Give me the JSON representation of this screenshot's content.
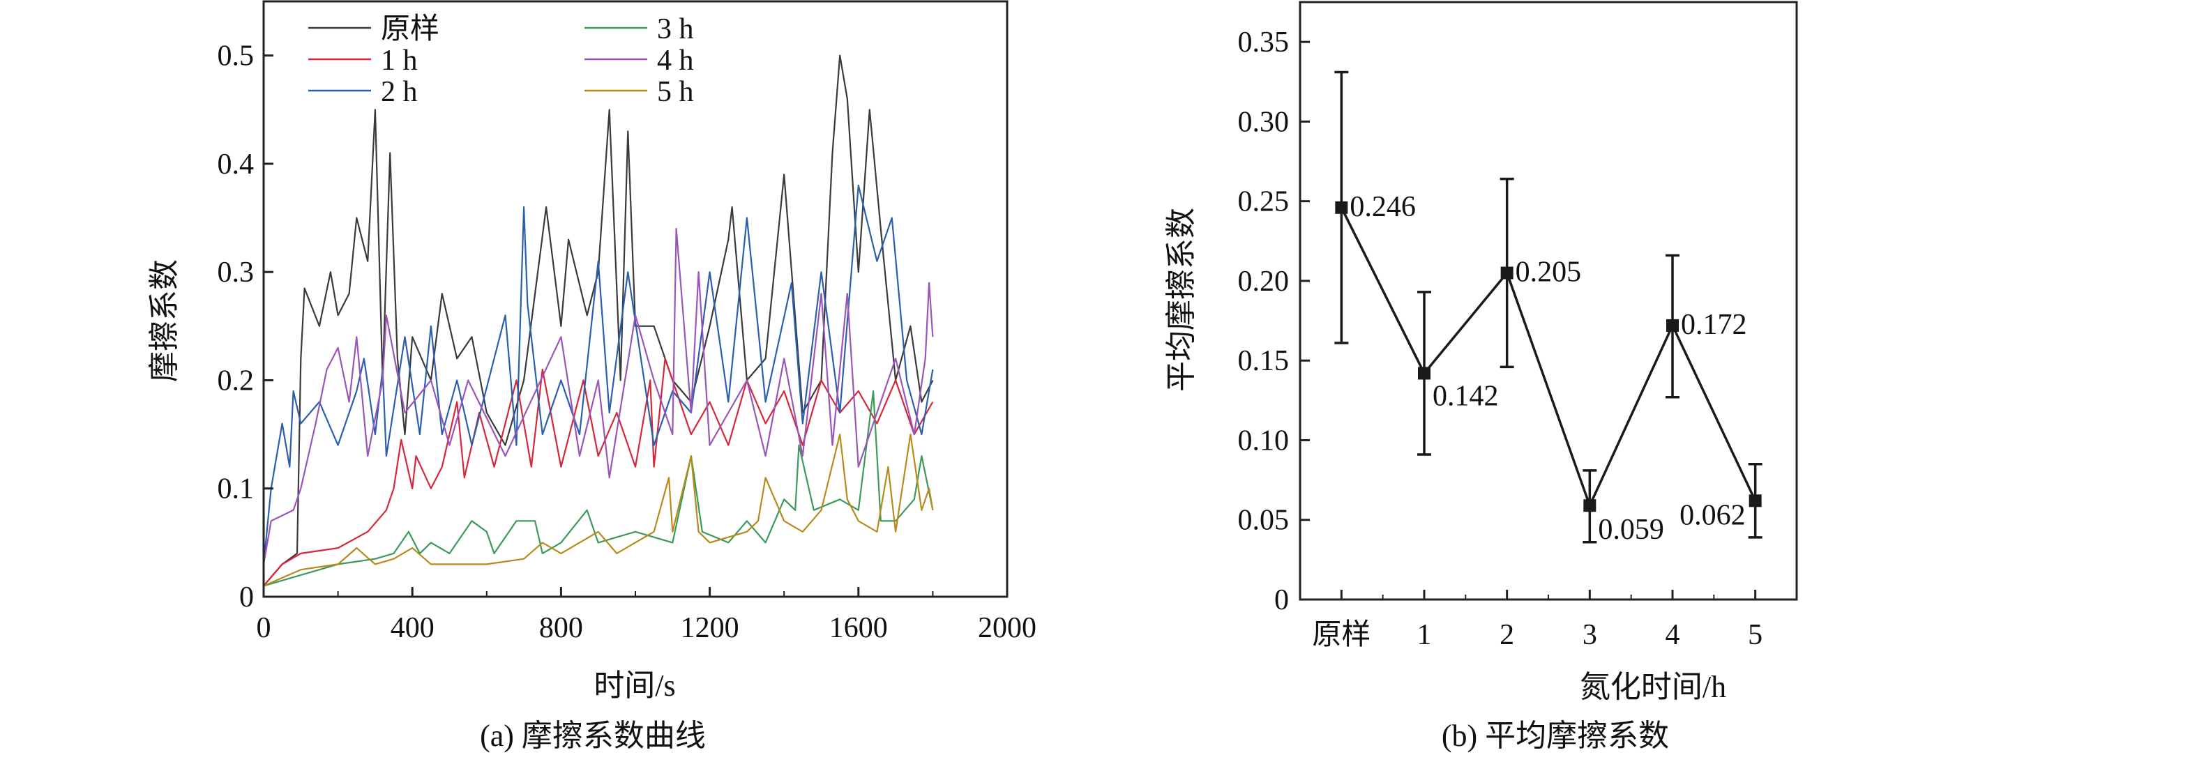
{
  "chart_data": [
    {
      "type": "line",
      "caption": "(a) 摩擦系数曲线",
      "xlabel": "时间/s",
      "ylabel": "摩擦系数",
      "xlim": [
        0,
        2000
      ],
      "ylim": [
        0,
        0.55
      ],
      "xticks": [
        0,
        400,
        800,
        1200,
        1600,
        2000
      ],
      "yticks": [
        0,
        0.1,
        0.2,
        0.3,
        0.4,
        0.5
      ],
      "ytick_labels": [
        "0",
        "0.1",
        "0.2",
        "0.3",
        "0.4",
        "0.5"
      ],
      "legend_placement": "top-left",
      "series": [
        {
          "name": "原样",
          "color": "#3a3a3a",
          "points": [
            [
              0,
              0.01
            ],
            [
              50,
              0.03
            ],
            [
              90,
              0.04
            ],
            [
              100,
              0.22
            ],
            [
              110,
              0.285
            ],
            [
              150,
              0.25
            ],
            [
              180,
              0.3
            ],
            [
              200,
              0.26
            ],
            [
              230,
              0.28
            ],
            [
              250,
              0.35
            ],
            [
              280,
              0.31
            ],
            [
              300,
              0.45
            ],
            [
              320,
              0.2
            ],
            [
              340,
              0.41
            ],
            [
              360,
              0.22
            ],
            [
              380,
              0.15
            ],
            [
              400,
              0.24
            ],
            [
              450,
              0.2
            ],
            [
              480,
              0.28
            ],
            [
              520,
              0.22
            ],
            [
              560,
              0.24
            ],
            [
              600,
              0.17
            ],
            [
              650,
              0.14
            ],
            [
              700,
              0.2
            ],
            [
              760,
              0.36
            ],
            [
              800,
              0.25
            ],
            [
              820,
              0.33
            ],
            [
              870,
              0.26
            ],
            [
              900,
              0.3
            ],
            [
              930,
              0.45
            ],
            [
              960,
              0.2
            ],
            [
              980,
              0.43
            ],
            [
              1000,
              0.25
            ],
            [
              1050,
              0.25
            ],
            [
              1100,
              0.2
            ],
            [
              1150,
              0.18
            ],
            [
              1200,
              0.25
            ],
            [
              1250,
              0.33
            ],
            [
              1260,
              0.36
            ],
            [
              1300,
              0.2
            ],
            [
              1350,
              0.22
            ],
            [
              1400,
              0.39
            ],
            [
              1450,
              0.17
            ],
            [
              1500,
              0.2
            ],
            [
              1530,
              0.41
            ],
            [
              1550,
              0.5
            ],
            [
              1570,
              0.46
            ],
            [
              1600,
              0.3
            ],
            [
              1630,
              0.45
            ],
            [
              1660,
              0.34
            ],
            [
              1700,
              0.2
            ],
            [
              1740,
              0.25
            ],
            [
              1770,
              0.18
            ],
            [
              1800,
              0.2
            ]
          ]
        },
        {
          "name": "1 h",
          "color": "#d6273a",
          "points": [
            [
              0,
              0.01
            ],
            [
              50,
              0.03
            ],
            [
              100,
              0.04
            ],
            [
              200,
              0.045
            ],
            [
              280,
              0.06
            ],
            [
              330,
              0.08
            ],
            [
              350,
              0.1
            ],
            [
              370,
              0.145
            ],
            [
              400,
              0.1
            ],
            [
              410,
              0.13
            ],
            [
              450,
              0.1
            ],
            [
              480,
              0.12
            ],
            [
              500,
              0.15
            ],
            [
              520,
              0.18
            ],
            [
              540,
              0.11
            ],
            [
              580,
              0.17
            ],
            [
              620,
              0.12
            ],
            [
              680,
              0.2
            ],
            [
              720,
              0.12
            ],
            [
              750,
              0.21
            ],
            [
              800,
              0.12
            ],
            [
              860,
              0.2
            ],
            [
              900,
              0.13
            ],
            [
              950,
              0.17
            ],
            [
              1000,
              0.12
            ],
            [
              1040,
              0.2
            ],
            [
              1050,
              0.12
            ],
            [
              1080,
              0.22
            ],
            [
              1150,
              0.15
            ],
            [
              1200,
              0.18
            ],
            [
              1250,
              0.14
            ],
            [
              1300,
              0.2
            ],
            [
              1350,
              0.16
            ],
            [
              1400,
              0.19
            ],
            [
              1450,
              0.14
            ],
            [
              1500,
              0.2
            ],
            [
              1550,
              0.17
            ],
            [
              1600,
              0.19
            ],
            [
              1650,
              0.16
            ],
            [
              1700,
              0.2
            ],
            [
              1750,
              0.15
            ],
            [
              1800,
              0.18
            ]
          ]
        },
        {
          "name": "2 h",
          "color": "#2b5fae",
          "points": [
            [
              0,
              0.03
            ],
            [
              20,
              0.1
            ],
            [
              50,
              0.16
            ],
            [
              70,
              0.12
            ],
            [
              80,
              0.19
            ],
            [
              100,
              0.16
            ],
            [
              150,
              0.18
            ],
            [
              200,
              0.14
            ],
            [
              250,
              0.19
            ],
            [
              270,
              0.22
            ],
            [
              300,
              0.15
            ],
            [
              320,
              0.21
            ],
            [
              330,
              0.13
            ],
            [
              380,
              0.24
            ],
            [
              420,
              0.15
            ],
            [
              450,
              0.25
            ],
            [
              480,
              0.15
            ],
            [
              520,
              0.2
            ],
            [
              560,
              0.14
            ],
            [
              650,
              0.26
            ],
            [
              680,
              0.14
            ],
            [
              700,
              0.36
            ],
            [
              710,
              0.27
            ],
            [
              750,
              0.15
            ],
            [
              800,
              0.2
            ],
            [
              850,
              0.15
            ],
            [
              900,
              0.31
            ],
            [
              930,
              0.17
            ],
            [
              980,
              0.3
            ],
            [
              1050,
              0.14
            ],
            [
              1100,
              0.19
            ],
            [
              1150,
              0.17
            ],
            [
              1200,
              0.3
            ],
            [
              1250,
              0.18
            ],
            [
              1300,
              0.35
            ],
            [
              1350,
              0.18
            ],
            [
              1420,
              0.29
            ],
            [
              1450,
              0.16
            ],
            [
              1500,
              0.3
            ],
            [
              1550,
              0.17
            ],
            [
              1600,
              0.38
            ],
            [
              1650,
              0.31
            ],
            [
              1690,
              0.35
            ],
            [
              1730,
              0.2
            ],
            [
              1770,
              0.15
            ],
            [
              1800,
              0.21
            ]
          ]
        },
        {
          "name": "3 h",
          "color": "#3a9a5a",
          "points": [
            [
              0,
              0.01
            ],
            [
              100,
              0.02
            ],
            [
              200,
              0.03
            ],
            [
              300,
              0.035
            ],
            [
              350,
              0.04
            ],
            [
              390,
              0.06
            ],
            [
              420,
              0.04
            ],
            [
              450,
              0.05
            ],
            [
              500,
              0.04
            ],
            [
              560,
              0.07
            ],
            [
              600,
              0.06
            ],
            [
              620,
              0.04
            ],
            [
              680,
              0.07
            ],
            [
              730,
              0.07
            ],
            [
              750,
              0.04
            ],
            [
              800,
              0.05
            ],
            [
              870,
              0.08
            ],
            [
              900,
              0.05
            ],
            [
              1000,
              0.06
            ],
            [
              1100,
              0.05
            ],
            [
              1150,
              0.13
            ],
            [
              1180,
              0.06
            ],
            [
              1250,
              0.05
            ],
            [
              1300,
              0.07
            ],
            [
              1350,
              0.05
            ],
            [
              1400,
              0.09
            ],
            [
              1430,
              0.08
            ],
            [
              1440,
              0.14
            ],
            [
              1480,
              0.08
            ],
            [
              1550,
              0.09
            ],
            [
              1600,
              0.08
            ],
            [
              1640,
              0.19
            ],
            [
              1660,
              0.07
            ],
            [
              1700,
              0.07
            ],
            [
              1750,
              0.09
            ],
            [
              1770,
              0.13
            ],
            [
              1800,
              0.08
            ]
          ]
        },
        {
          "name": "4 h",
          "color": "#9a55b8",
          "points": [
            [
              0,
              0.03
            ],
            [
              20,
              0.07
            ],
            [
              80,
              0.08
            ],
            [
              100,
              0.1
            ],
            [
              140,
              0.16
            ],
            [
              170,
              0.21
            ],
            [
              200,
              0.23
            ],
            [
              230,
              0.18
            ],
            [
              250,
              0.24
            ],
            [
              280,
              0.13
            ],
            [
              320,
              0.2
            ],
            [
              330,
              0.26
            ],
            [
              380,
              0.17
            ],
            [
              450,
              0.2
            ],
            [
              500,
              0.14
            ],
            [
              550,
              0.2
            ],
            [
              650,
              0.13
            ],
            [
              800,
              0.24
            ],
            [
              850,
              0.13
            ],
            [
              900,
              0.2
            ],
            [
              930,
              0.11
            ],
            [
              1000,
              0.26
            ],
            [
              1050,
              0.2
            ],
            [
              1100,
              0.15
            ],
            [
              1110,
              0.34
            ],
            [
              1150,
              0.17
            ],
            [
              1170,
              0.3
            ],
            [
              1200,
              0.14
            ],
            [
              1300,
              0.2
            ],
            [
              1350,
              0.13
            ],
            [
              1400,
              0.22
            ],
            [
              1450,
              0.13
            ],
            [
              1500,
              0.28
            ],
            [
              1530,
              0.14
            ],
            [
              1570,
              0.28
            ],
            [
              1600,
              0.12
            ],
            [
              1650,
              0.17
            ],
            [
              1700,
              0.22
            ],
            [
              1750,
              0.15
            ],
            [
              1780,
              0.22
            ],
            [
              1790,
              0.29
            ],
            [
              1800,
              0.24
            ]
          ]
        },
        {
          "name": "5 h",
          "color": "#b88a1a",
          "points": [
            [
              0,
              0.01
            ],
            [
              100,
              0.025
            ],
            [
              200,
              0.03
            ],
            [
              250,
              0.045
            ],
            [
              300,
              0.03
            ],
            [
              350,
              0.035
            ],
            [
              400,
              0.045
            ],
            [
              450,
              0.03
            ],
            [
              500,
              0.03
            ],
            [
              600,
              0.03
            ],
            [
              700,
              0.035
            ],
            [
              750,
              0.05
            ],
            [
              800,
              0.04
            ],
            [
              900,
              0.06
            ],
            [
              950,
              0.04
            ],
            [
              1050,
              0.06
            ],
            [
              1090,
              0.11
            ],
            [
              1100,
              0.06
            ],
            [
              1150,
              0.13
            ],
            [
              1170,
              0.06
            ],
            [
              1200,
              0.05
            ],
            [
              1300,
              0.06
            ],
            [
              1330,
              0.07
            ],
            [
              1350,
              0.11
            ],
            [
              1400,
              0.07
            ],
            [
              1450,
              0.06
            ],
            [
              1500,
              0.08
            ],
            [
              1550,
              0.15
            ],
            [
              1570,
              0.09
            ],
            [
              1600,
              0.07
            ],
            [
              1650,
              0.06
            ],
            [
              1680,
              0.12
            ],
            [
              1700,
              0.06
            ],
            [
              1740,
              0.15
            ],
            [
              1770,
              0.08
            ],
            [
              1790,
              0.1
            ],
            [
              1800,
              0.08
            ]
          ]
        }
      ]
    },
    {
      "type": "line",
      "caption": "(b) 平均摩擦系数",
      "xlabel": "氮化时间/h",
      "ylabel": "平均摩擦系数",
      "categories": [
        "原样",
        "1",
        "2",
        "3",
        "4",
        "5"
      ],
      "ylim": [
        0,
        0.375
      ],
      "yticks": [
        0,
        0.05,
        0.1,
        0.15,
        0.2,
        0.25,
        0.3,
        0.35
      ],
      "ytick_labels": [
        "0",
        "0.05",
        "0.10",
        "0.15",
        "0.20",
        "0.25",
        "0.30",
        "0.35"
      ],
      "color": "#1a1a1a",
      "marker": "square",
      "values": [
        0.246,
        0.142,
        0.205,
        0.059,
        0.172,
        0.062
      ],
      "value_labels": [
        "0.246",
        "0.142",
        "0.205",
        "0.059",
        "0.172",
        "0.062"
      ],
      "error_low": [
        0.161,
        0.091,
        0.146,
        0.036,
        0.127,
        0.039
      ],
      "error_high": [
        0.331,
        0.193,
        0.264,
        0.081,
        0.216,
        0.085
      ]
    }
  ]
}
